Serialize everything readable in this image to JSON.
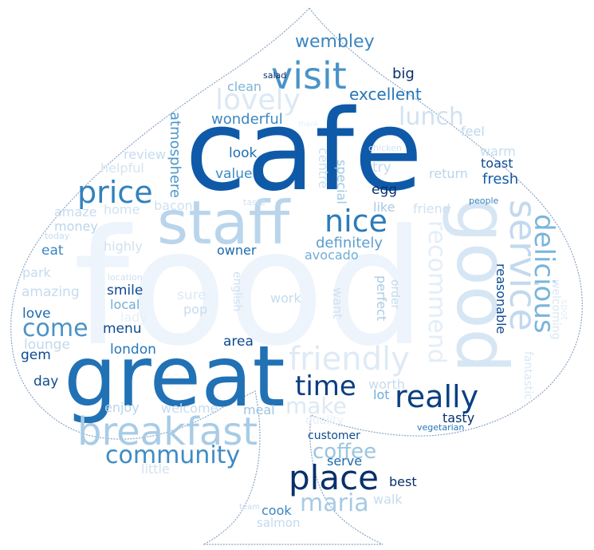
{
  "colors": {
    "background": "#ffffff",
    "outline": "#8aa4c6",
    "palette": [
      "#08306b",
      "#08519c",
      "#2171b5",
      "#4292c6",
      "#6baed6",
      "#9ecae1",
      "#c6dbef",
      "#deebf7",
      "#eef4fb"
    ]
  },
  "words": [
    {
      "t": "food",
      "c": "#eef4fb"
    },
    {
      "t": "cafe",
      "c": "#0f5aa8"
    },
    {
      "t": "great",
      "c": "#2171b5"
    },
    {
      "t": "staff",
      "c": "#b9d5ec"
    },
    {
      "t": "good",
      "c": "#d6e6f4"
    },
    {
      "t": "service",
      "c": "#c2d9ee"
    },
    {
      "t": "breakfast",
      "c": "#a8cce6"
    },
    {
      "t": "visit",
      "c": "#4a93c8"
    },
    {
      "t": "lovely",
      "c": "#dbe9f5"
    },
    {
      "t": "place",
      "c": "#08306b"
    },
    {
      "t": "friendly",
      "c": "#dfeaf6"
    },
    {
      "t": "nice",
      "c": "#2b7bba"
    },
    {
      "t": "price",
      "c": "#3282bd"
    },
    {
      "t": "delicious",
      "c": "#7ab5da"
    },
    {
      "t": "really",
      "c": "#0a3f82"
    },
    {
      "t": "time",
      "c": "#0b3d80"
    },
    {
      "t": "recommend",
      "c": "#e4eef8"
    },
    {
      "t": "community",
      "c": "#3f8bc3"
    },
    {
      "t": "maria",
      "c": "#a7cbe4"
    },
    {
      "t": "make",
      "c": "#dce9f5"
    },
    {
      "t": "come",
      "c": "#4a93c8"
    },
    {
      "t": "lunch",
      "c": "#d0e2f1"
    },
    {
      "t": "coffee",
      "c": "#9ac5e0"
    },
    {
      "t": "wembley",
      "c": "#3a86c0"
    },
    {
      "t": "excellent",
      "c": "#2676b8"
    },
    {
      "t": "wonderful",
      "c": "#3b87c1"
    },
    {
      "t": "atmosphere",
      "c": "#4e96c9"
    },
    {
      "t": "definitely",
      "c": "#5a9ecf"
    },
    {
      "t": "fresh",
      "c": "#145ca4"
    },
    {
      "t": "clean",
      "c": "#7fb4d9"
    },
    {
      "t": "big",
      "c": "#08306b"
    },
    {
      "t": "salad",
      "c": "#08306b"
    },
    {
      "t": "feel",
      "c": "#bcd7ec"
    },
    {
      "t": "review",
      "c": "#c6dbef"
    },
    {
      "t": "helpful",
      "c": "#d3e4f2"
    },
    {
      "t": "look",
      "c": "#1f6fb2"
    },
    {
      "t": "value",
      "c": "#3d89c2"
    },
    {
      "t": "centre",
      "c": "#c9def0"
    },
    {
      "t": "special",
      "c": "#9fc8e2"
    },
    {
      "t": "try",
      "c": "#c2d9ee"
    },
    {
      "t": "egg",
      "c": "#08306b"
    },
    {
      "t": "toast",
      "c": "#0d4a91"
    },
    {
      "t": "warm",
      "c": "#c6dbef"
    },
    {
      "t": "return",
      "c": "#b9d5ec"
    },
    {
      "t": "chicken",
      "c": "#d0e2f1"
    },
    {
      "t": "thank",
      "c": "#e6eff8"
    },
    {
      "t": "amaze",
      "c": "#c6dbef"
    },
    {
      "t": "home",
      "c": "#d0e2f1"
    },
    {
      "t": "bacon",
      "c": "#cfe1f1"
    },
    {
      "t": "taste",
      "c": "#cfe1f1"
    },
    {
      "t": "like",
      "c": "#a7cbe4"
    },
    {
      "t": "friend",
      "c": "#cfe1f1"
    },
    {
      "t": "people",
      "c": "#3a86c0"
    },
    {
      "t": "money",
      "c": "#b9d5ec"
    },
    {
      "t": "today",
      "c": "#c6dbef"
    },
    {
      "t": "highly",
      "c": "#d0e2f1"
    },
    {
      "t": "owner",
      "c": "#1c6aae"
    },
    {
      "t": "avocado",
      "c": "#6fadd6"
    },
    {
      "t": "eat",
      "c": "#3a86c0"
    },
    {
      "t": "park",
      "c": "#c6dbef"
    },
    {
      "t": "location",
      "c": "#cfe1f1"
    },
    {
      "t": "amazing",
      "c": "#c6dbef"
    },
    {
      "t": "smile",
      "c": "#0d4a91"
    },
    {
      "t": "sure",
      "c": "#dce9f5"
    },
    {
      "t": "english",
      "c": "#d0e2f1"
    },
    {
      "t": "work",
      "c": "#c6dbef"
    },
    {
      "t": "want",
      "c": "#d0e2f1"
    },
    {
      "t": "perfect",
      "c": "#a7cbe4"
    },
    {
      "t": "order",
      "c": "#c2d9ee"
    },
    {
      "t": "reasonable",
      "c": "#0d4a91"
    },
    {
      "t": "fantastic",
      "c": "#d9e7f4"
    },
    {
      "t": "welcoming",
      "c": "#d9e7f4"
    },
    {
      "t": "spot",
      "c": "#e6eff8"
    },
    {
      "t": "local",
      "c": "#6fadd6"
    },
    {
      "t": "pop",
      "c": "#c6dbef"
    },
    {
      "t": "lady",
      "c": "#e6eff8"
    },
    {
      "t": "love",
      "c": "#1c6aae"
    },
    {
      "t": "menu",
      "c": "#0d4a91"
    },
    {
      "t": "lounge",
      "c": "#c2d9ee"
    },
    {
      "t": "area",
      "c": "#0d4a91"
    },
    {
      "t": "gem",
      "c": "#0d4a91"
    },
    {
      "t": "london",
      "c": "#2676b8"
    },
    {
      "t": "day",
      "c": "#0d4a91"
    },
    {
      "t": "worth",
      "c": "#c6dbef"
    },
    {
      "t": "lot",
      "c": "#6fadd6"
    },
    {
      "t": "enjoy",
      "c": "#b9d5ec"
    },
    {
      "t": "welcome",
      "c": "#c6dbef"
    },
    {
      "t": "meal",
      "c": "#9ac5e0"
    },
    {
      "t": "quality",
      "c": "#e6eff8"
    },
    {
      "t": "tasty",
      "c": "#08306b"
    },
    {
      "t": "vegetarian",
      "c": "#2676b8"
    },
    {
      "t": "customer",
      "c": "#0d4a91"
    },
    {
      "t": "little",
      "c": "#d0e2f1"
    },
    {
      "t": "serve",
      "c": "#1c6aae"
    },
    {
      "t": "best",
      "c": "#08306b"
    },
    {
      "t": "team",
      "c": "#c6dbef"
    },
    {
      "t": "cook",
      "c": "#3a86c0"
    },
    {
      "t": "walk",
      "c": "#c6dbef"
    },
    {
      "t": "salmon",
      "c": "#c2d9ee"
    }
  ]
}
